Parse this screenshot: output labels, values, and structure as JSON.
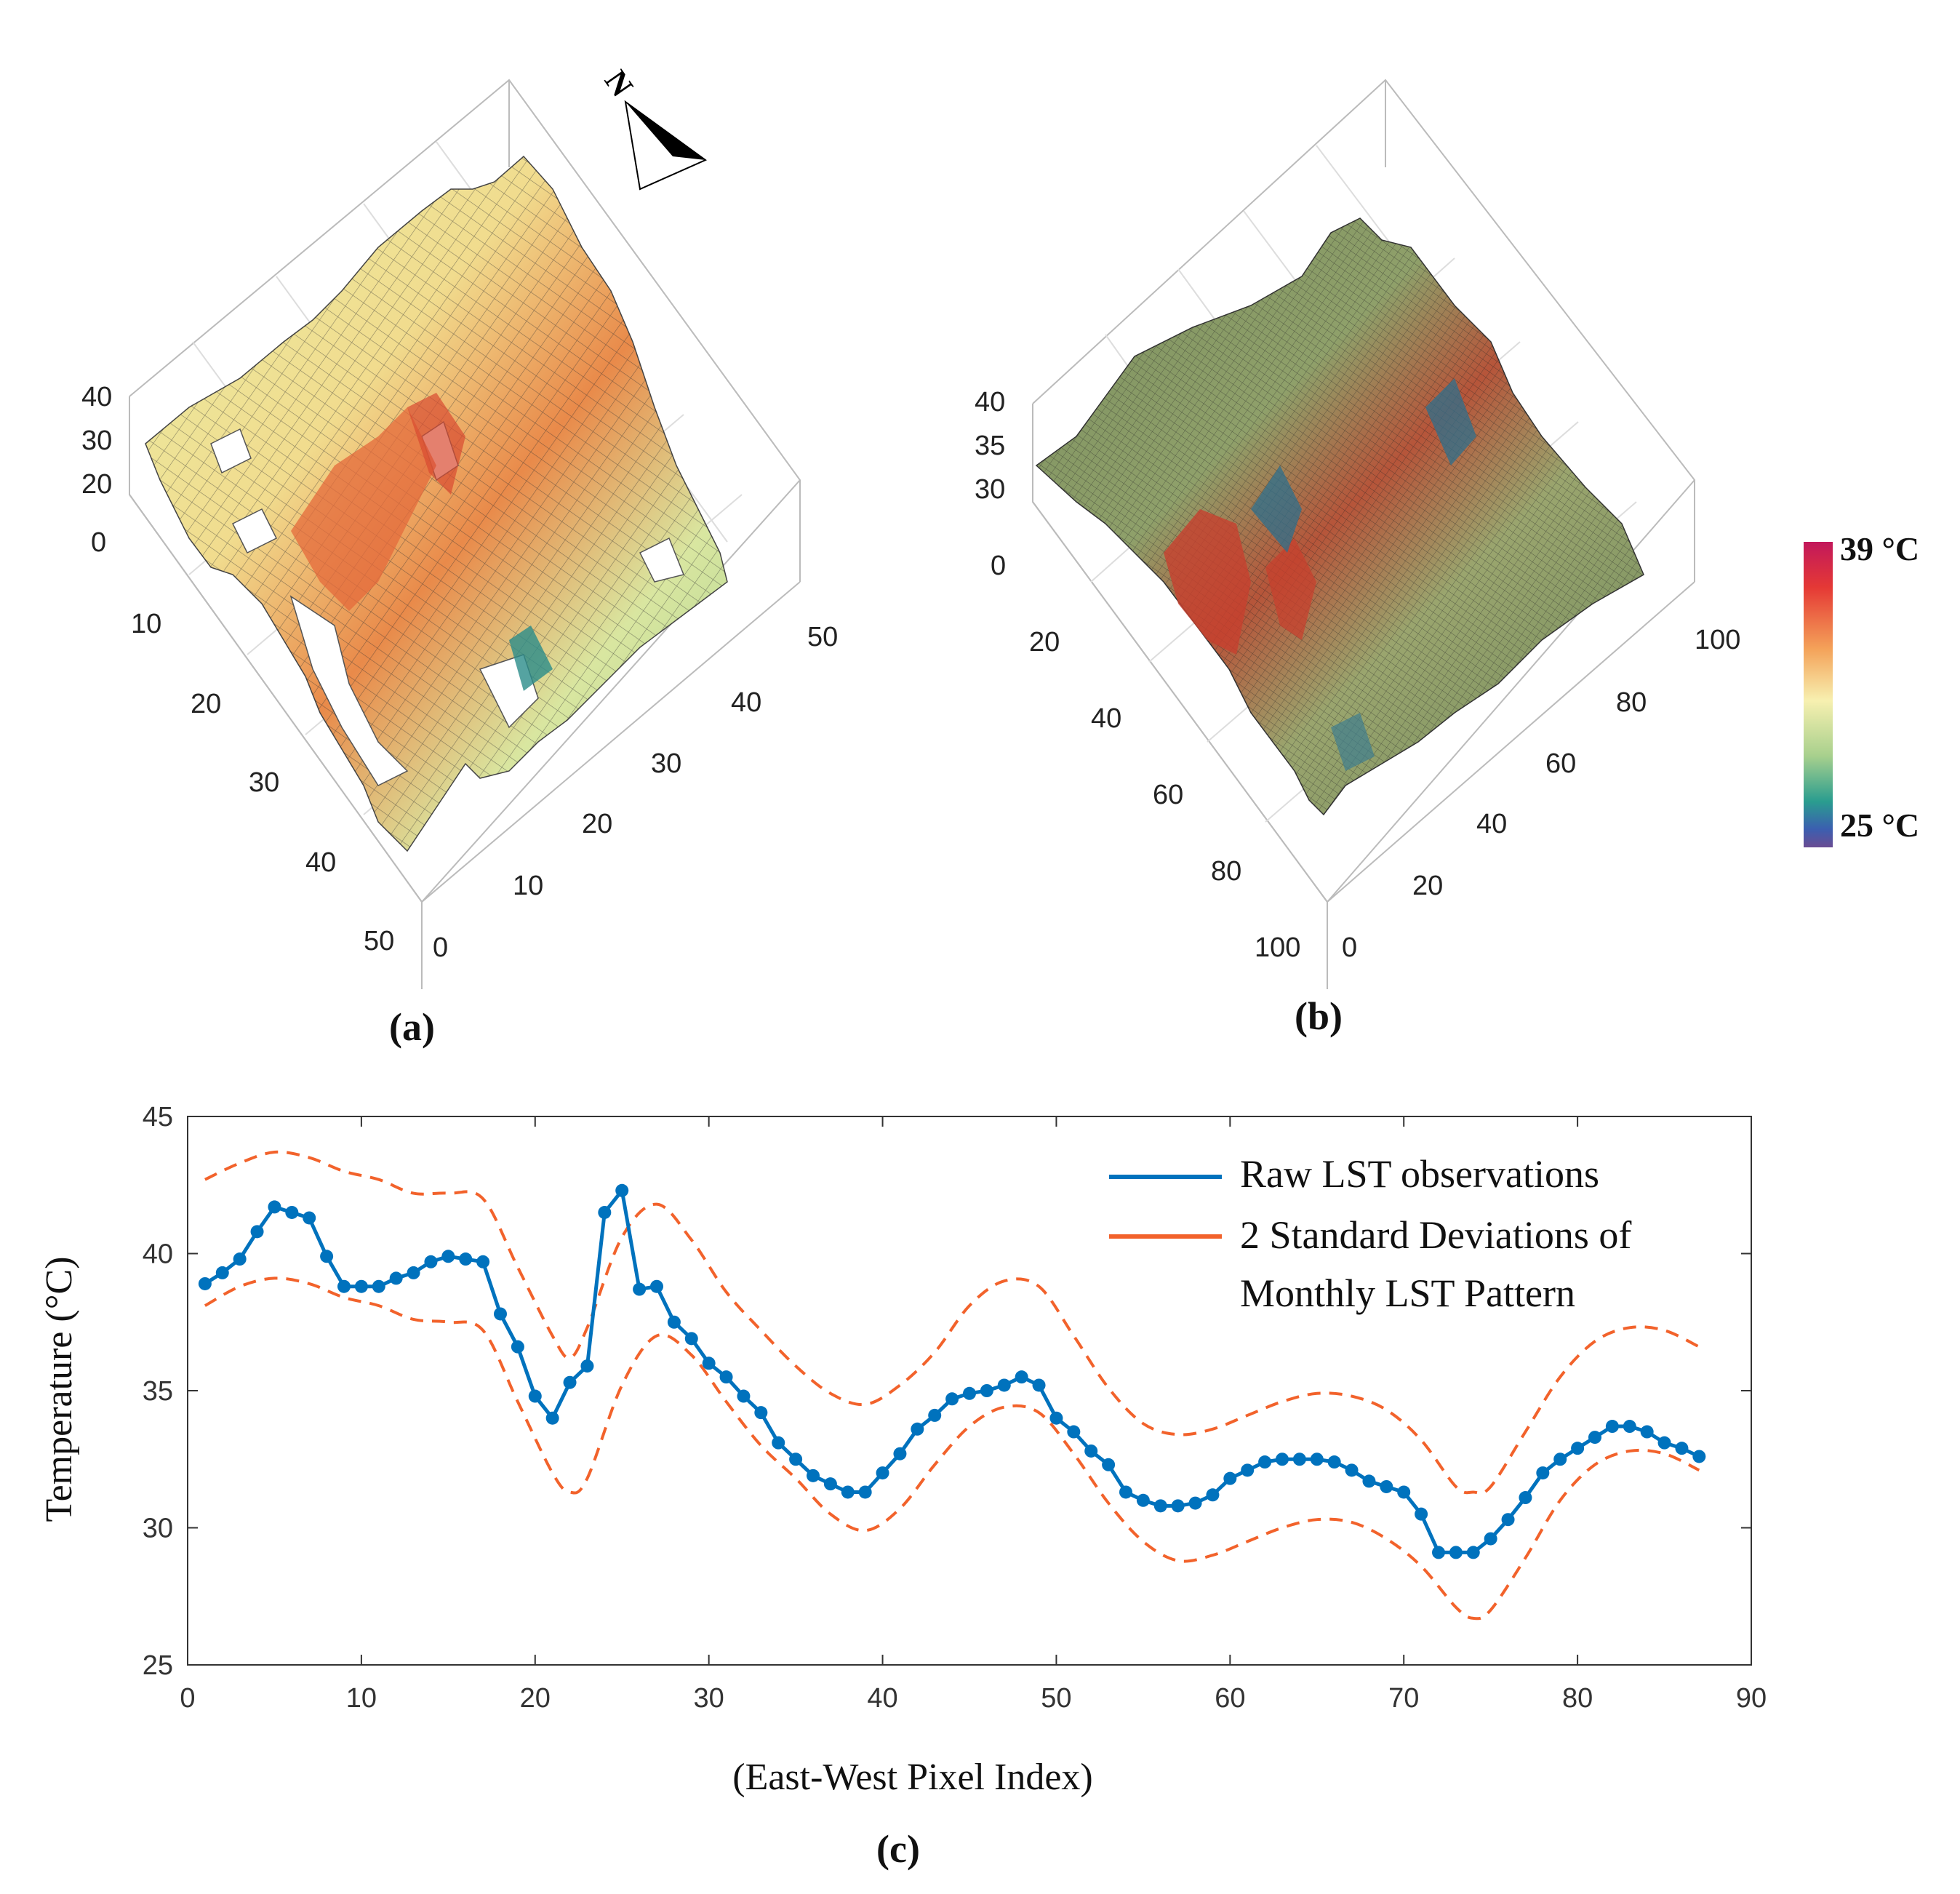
{
  "panels": {
    "a": {
      "label": "(a)",
      "z_ticks": [
        "40",
        "30",
        "20",
        "0"
      ],
      "x_ticks": [
        "10",
        "20",
        "30",
        "40",
        "50"
      ],
      "y_ticks": [
        "0",
        "10",
        "20",
        "30",
        "40",
        "50"
      ]
    },
    "b": {
      "label": "(b)",
      "z_ticks": [
        "40",
        "35",
        "30",
        "0"
      ],
      "x_ticks": [
        "20",
        "40",
        "60",
        "80",
        "100"
      ],
      "y_ticks": [
        "0",
        "20",
        "40",
        "60",
        "80",
        "100"
      ]
    },
    "c": {
      "label": "(c)"
    }
  },
  "north_arrow": {
    "label": "N"
  },
  "colorbar": {
    "max_label": "39 °C",
    "min_label": "25 °C",
    "colors": [
      "#c2185b",
      "#e53935",
      "#f4a259",
      "#f7f0b0",
      "#a8d08d",
      "#2a9d8f",
      "#3b5fb0",
      "#6a4c93"
    ]
  },
  "chart_data": {
    "type": "line",
    "xlabel": "(East-West Pixel Index)",
    "ylabel": "Temperature (°C)",
    "xlim": [
      0,
      90
    ],
    "ylim": [
      25,
      45
    ],
    "x_ticks": [
      0,
      10,
      20,
      30,
      40,
      50,
      60,
      70,
      80,
      90
    ],
    "y_ticks": [
      25,
      30,
      35,
      40,
      45
    ],
    "x_tick_labels": [
      "0",
      "10",
      "20",
      "30",
      "40",
      "50",
      "60",
      "70",
      "80",
      "90"
    ],
    "y_tick_labels": [
      "25",
      "30",
      "35",
      "40",
      "45"
    ],
    "legend_position": "top-right",
    "series": [
      {
        "name": "Raw LST observations",
        "color": "#0072bd",
        "style": "solid-markers",
        "x": [
          1,
          2,
          3,
          4,
          5,
          6,
          7,
          8,
          9,
          10,
          11,
          12,
          13,
          14,
          15,
          16,
          17,
          18,
          19,
          20,
          21,
          22,
          23,
          24,
          25,
          26,
          27,
          28,
          29,
          30,
          31,
          32,
          33,
          34,
          35,
          36,
          37,
          38,
          39,
          40,
          41,
          42,
          43,
          44,
          45,
          46,
          47,
          48,
          49,
          50,
          51,
          52,
          53,
          54,
          55,
          56,
          57,
          58,
          59,
          60,
          61,
          62,
          63,
          64,
          65,
          66,
          67,
          68,
          69,
          70,
          71,
          72,
          73,
          74,
          75,
          76,
          77,
          78,
          79,
          80,
          81,
          82,
          83,
          84,
          85,
          86,
          87
        ],
        "y": [
          38.9,
          39.3,
          39.8,
          40.8,
          41.7,
          41.5,
          41.3,
          39.9,
          38.8,
          38.8,
          38.8,
          39.1,
          39.3,
          39.7,
          39.9,
          39.8,
          39.7,
          37.8,
          36.6,
          34.8,
          34.0,
          35.3,
          35.9,
          41.5,
          42.3,
          38.7,
          38.8,
          37.5,
          36.9,
          36.0,
          35.5,
          34.8,
          34.2,
          33.1,
          32.5,
          31.9,
          31.6,
          31.3,
          31.3,
          32.0,
          32.7,
          33.6,
          34.1,
          34.7,
          34.9,
          35.0,
          35.2,
          35.5,
          35.2,
          34.0,
          33.5,
          32.8,
          32.3,
          31.3,
          31.0,
          30.8,
          30.8,
          30.9,
          31.2,
          31.8,
          32.1,
          32.4,
          32.5,
          32.5,
          32.5,
          32.4,
          32.1,
          31.7,
          31.5,
          31.3,
          30.5,
          29.1,
          29.1,
          29.1,
          29.6,
          30.3,
          31.1,
          32.0,
          32.5,
          32.9,
          33.3,
          33.7,
          33.7,
          33.5,
          33.1,
          32.9,
          32.6
        ]
      },
      {
        "name": "2 Standard Deviations of",
        "name_line2": "Monthly LST Pattern",
        "color": "#f2622b",
        "style": "dashed",
        "x": [
          1,
          3,
          5,
          7,
          9,
          11,
          13,
          15,
          17,
          19,
          21,
          22,
          23,
          25,
          27,
          29,
          31,
          33,
          35,
          37,
          39,
          41,
          43,
          45,
          47,
          49,
          51,
          53,
          55,
          57,
          59,
          61,
          63,
          65,
          67,
          69,
          71,
          73,
          74,
          75,
          77,
          79,
          81,
          83,
          85,
          87
        ],
        "upper": [
          42.7,
          43.3,
          43.7,
          43.5,
          43.0,
          42.7,
          42.2,
          42.2,
          42.0,
          39.5,
          37.0,
          36.2,
          37.3,
          40.6,
          41.8,
          40.5,
          38.6,
          37.2,
          35.9,
          34.9,
          34.5,
          35.2,
          36.4,
          38.1,
          39.0,
          38.8,
          37.0,
          35.1,
          33.8,
          33.4,
          33.6,
          34.1,
          34.6,
          34.9,
          34.8,
          34.3,
          33.2,
          31.5,
          31.3,
          31.5,
          33.5,
          35.5,
          36.8,
          37.3,
          37.2,
          36.6
        ],
        "lower": [
          38.1,
          38.8,
          39.1,
          38.9,
          38.4,
          38.1,
          37.6,
          37.5,
          37.2,
          34.6,
          32.0,
          31.3,
          31.8,
          35.2,
          37.0,
          36.3,
          34.6,
          33.0,
          31.8,
          30.5,
          29.9,
          30.7,
          32.3,
          33.7,
          34.4,
          34.2,
          32.7,
          30.9,
          29.5,
          28.8,
          29.0,
          29.5,
          30.0,
          30.3,
          30.2,
          29.6,
          28.6,
          27.1,
          26.7,
          27.0,
          28.9,
          31.0,
          32.3,
          32.8,
          32.7,
          32.1
        ]
      }
    ]
  }
}
